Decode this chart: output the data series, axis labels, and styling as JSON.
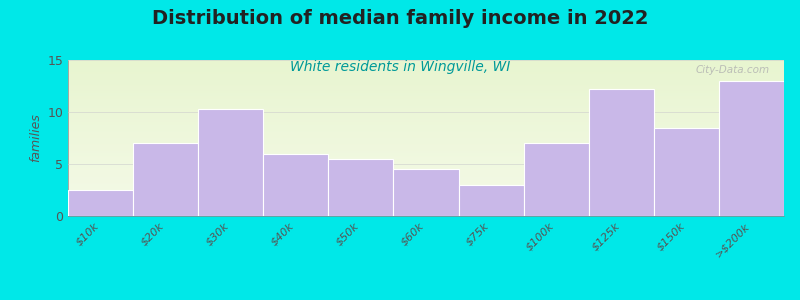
{
  "title": "Distribution of median family income in 2022",
  "subtitle": "White residents in Wingville, WI",
  "ylabel": "families",
  "categories": [
    "$10k",
    "$20k",
    "$30k",
    "$40k",
    "$50k",
    "$60k",
    "$75k",
    "$100k",
    "$125k",
    "$150k",
    ">$200k"
  ],
  "values": [
    2.5,
    7.0,
    10.3,
    6.0,
    5.5,
    4.5,
    3.0,
    7.0,
    12.2,
    8.5,
    13.0
  ],
  "bar_color": "#c9b8e8",
  "bar_edgecolor": "#ffffff",
  "background_color": "#00e8e8",
  "plot_bg_color": "#eef5d8",
  "ylim": [
    0,
    15
  ],
  "yticks": [
    0,
    5,
    10,
    15
  ],
  "title_fontsize": 14,
  "subtitle_fontsize": 10,
  "subtitle_color": "#009999",
  "title_color": "#222222",
  "watermark": "City-Data.com",
  "watermark_color": "#b0b0b0",
  "tick_color": "#555555",
  "spine_color": "#888888"
}
